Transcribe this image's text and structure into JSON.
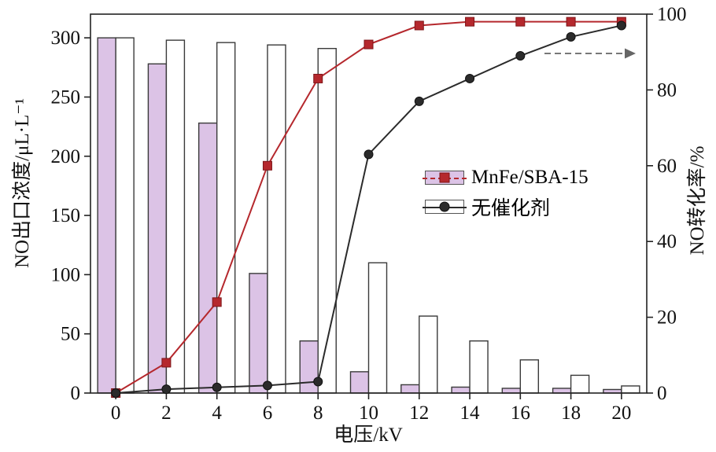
{
  "chart_data": {
    "type": "bar",
    "subtype": "grouped-bars-with-lines-combo",
    "x": [
      0,
      2,
      4,
      6,
      8,
      10,
      12,
      14,
      16,
      18,
      20
    ],
    "xlabel": "电压/kV",
    "ylabel_left": "NO出口浓度/μL·L⁻¹",
    "ylabel_right": "NO转化率/%",
    "left_axis": {
      "min": 0,
      "max": 320,
      "ticks": [
        0,
        50,
        100,
        150,
        200,
        250,
        300
      ]
    },
    "right_axis": {
      "min": 0,
      "max": 100,
      "ticks": [
        0,
        20,
        40,
        60,
        80,
        100
      ]
    },
    "bars": [
      {
        "name": "MnFe/SBA-15",
        "axis": "left",
        "fill": "#dcc3e6",
        "stroke": "#3a3a3a",
        "values": [
          300,
          278,
          228,
          101,
          44,
          18,
          7,
          5,
          4,
          4,
          3
        ]
      },
      {
        "name": "无催化剂",
        "axis": "left",
        "fill": "#ffffff",
        "stroke": "#3a3a3a",
        "values": [
          300,
          298,
          296,
          294,
          291,
          110,
          65,
          44,
          28,
          15,
          6
        ]
      }
    ],
    "lines": [
      {
        "name": "MnFe/SBA-15",
        "axis": "right",
        "color": "#b5282d",
        "marker": "square",
        "values": [
          0,
          8,
          24,
          60,
          83,
          92,
          97,
          98,
          98,
          98,
          98
        ]
      },
      {
        "name": "无催化剂",
        "axis": "right",
        "color": "#2b2b2b",
        "marker": "circle",
        "values": [
          0,
          1,
          1.5,
          2,
          3,
          63,
          77,
          83,
          89,
          94,
          97
        ]
      }
    ],
    "legend": {
      "position": "center-right",
      "items": [
        "MnFe/SBA-15",
        "无催化剂"
      ]
    },
    "grid": false,
    "annotation_arrow": {
      "style": "dashed",
      "direction": "right",
      "color": "#666666",
      "meaning": "read lines on right axis"
    }
  }
}
